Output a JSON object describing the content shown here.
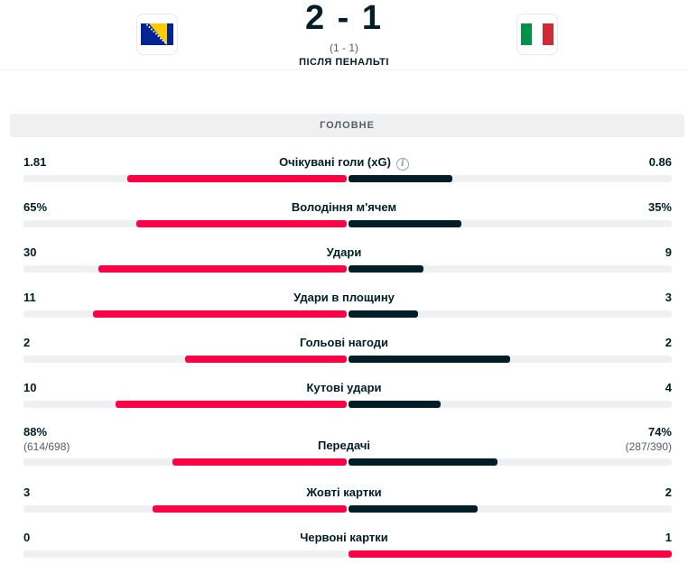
{
  "match": {
    "score": "2 - 1",
    "halftime": "(1 - 1)",
    "status": "ПІСЛЯ ПЕНАЛЬТІ",
    "home_flag_icon": "bosnia-flag-icon",
    "away_flag_icon": "italy-flag-icon"
  },
  "section_title": "ГОЛОВНЕ",
  "colors": {
    "home_bar": "#ff0046",
    "away_bar": "#001e28",
    "track": "#eef0f1"
  },
  "stats": [
    {
      "name": "Очікувані голи (xG)",
      "home": "1.81",
      "away": "0.86",
      "home_share": 0.678,
      "away_share": 0.322,
      "info": true
    },
    {
      "name": "Володіння м'ячем",
      "home": "65%",
      "away": "35%",
      "home_share": 0.65,
      "away_share": 0.35
    },
    {
      "name": "Удари",
      "home": "30",
      "away": "9",
      "home_share": 0.769,
      "away_share": 0.231
    },
    {
      "name": "Удари в площину",
      "home": "11",
      "away": "3",
      "home_share": 0.786,
      "away_share": 0.214
    },
    {
      "name": "Гольові нагоди",
      "home": "2",
      "away": "2",
      "home_share": 0.5,
      "away_share": 0.5
    },
    {
      "name": "Кутові удари",
      "home": "10",
      "away": "4",
      "home_share": 0.714,
      "away_share": 0.286
    },
    {
      "name": "Передачі",
      "home": "88%",
      "away": "74%",
      "home_sub": "(614/698)",
      "away_sub": "(287/390)",
      "home_share": 0.54,
      "away_share": 0.46
    },
    {
      "name": "Жовті картки",
      "home": "3",
      "away": "2",
      "home_share": 0.6,
      "away_share": 0.4
    },
    {
      "name": "Червоні картки",
      "home": "0",
      "away": "1",
      "home_share": 0.0,
      "away_share": 1.0
    }
  ]
}
